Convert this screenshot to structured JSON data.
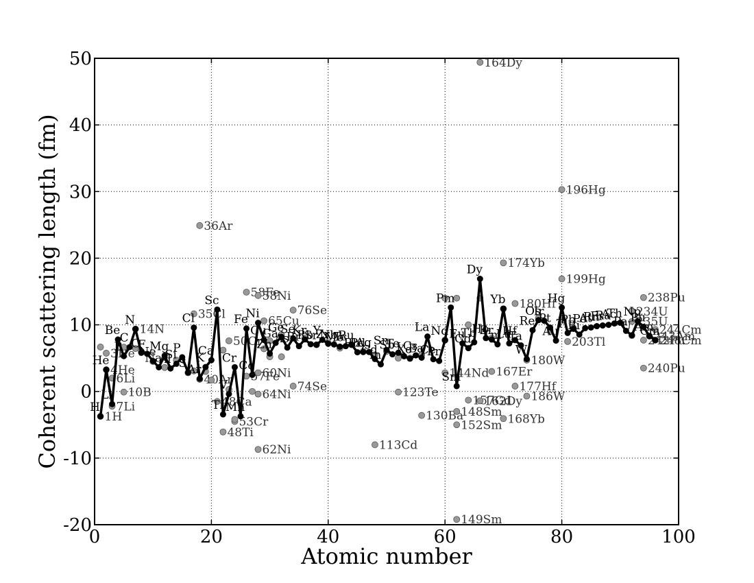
{
  "chart_data": {
    "type": "scatter",
    "title": "",
    "xlabel": "Atomic number",
    "ylabel": "Coherent scattering length (fm)",
    "xlim": [
      0,
      100
    ],
    "ylim": [
      -20,
      50
    ],
    "xticks": [
      0,
      20,
      40,
      60,
      80,
      100
    ],
    "yticks": [
      -20,
      -10,
      0,
      10,
      20,
      30,
      40,
      50
    ],
    "grid": true,
    "colors": {
      "element_line": "#000000",
      "isotope_marker": "#999999",
      "isotope_edge": "#555555"
    },
    "element_series": [
      {
        "z": 1,
        "y": -3.74,
        "label": "H"
      },
      {
        "z": 2,
        "y": 3.26,
        "label": "He"
      },
      {
        "z": 3,
        "y": -1.9,
        "label": "Li"
      },
      {
        "z": 4,
        "y": 7.79,
        "label": "Be"
      },
      {
        "z": 5,
        "y": 5.3,
        "label": "B"
      },
      {
        "z": 6,
        "y": 6.65,
        "label": "C"
      },
      {
        "z": 7,
        "y": 9.36,
        "label": "N"
      },
      {
        "z": 8,
        "y": 5.8,
        "label": "O"
      },
      {
        "z": 9,
        "y": 5.65,
        "label": "F"
      },
      {
        "z": 10,
        "y": 4.57,
        "label": "Ne"
      },
      {
        "z": 11,
        "y": 3.63,
        "label": "Na"
      },
      {
        "z": 12,
        "y": 5.38,
        "label": "Mg"
      },
      {
        "z": 13,
        "y": 3.45,
        "label": "Al"
      },
      {
        "z": 14,
        "y": 4.15,
        "label": "Si"
      },
      {
        "z": 15,
        "y": 5.13,
        "label": "P"
      },
      {
        "z": 16,
        "y": 2.85,
        "label": "S"
      },
      {
        "z": 17,
        "y": 9.58,
        "label": "Cl"
      },
      {
        "z": 18,
        "y": 1.91,
        "label": "Ar"
      },
      {
        "z": 19,
        "y": 3.67,
        "label": "K"
      },
      {
        "z": 20,
        "y": 4.7,
        "label": "Ca"
      },
      {
        "z": 21,
        "y": 12.29,
        "label": "Sc"
      },
      {
        "z": 22,
        "y": -3.44,
        "label": "Ti"
      },
      {
        "z": 23,
        "y": -0.38,
        "label": "V"
      },
      {
        "z": 24,
        "y": 3.64,
        "label": "Cr"
      },
      {
        "z": 25,
        "y": -3.73,
        "label": "Mn"
      },
      {
        "z": 26,
        "y": 9.45,
        "label": "Fe"
      },
      {
        "z": 27,
        "y": 2.49,
        "label": "Co"
      },
      {
        "z": 28,
        "y": 10.3,
        "label": "Ni"
      },
      {
        "z": 29,
        "y": 7.72,
        "label": "Cu"
      },
      {
        "z": 30,
        "y": 5.68,
        "label": "Zn"
      },
      {
        "z": 31,
        "y": 7.29,
        "label": "Ga"
      },
      {
        "z": 32,
        "y": 8.19,
        "label": "Ge"
      },
      {
        "z": 33,
        "y": 6.58,
        "label": "As"
      },
      {
        "z": 34,
        "y": 7.97,
        "label": "Se"
      },
      {
        "z": 35,
        "y": 6.8,
        "label": "Br"
      },
      {
        "z": 36,
        "y": 7.81,
        "label": "Kr"
      },
      {
        "z": 37,
        "y": 7.09,
        "label": "Rb"
      },
      {
        "z": 38,
        "y": 7.02,
        "label": "Sr"
      },
      {
        "z": 39,
        "y": 7.75,
        "label": "Y"
      },
      {
        "z": 40,
        "y": 7.16,
        "label": "Zr"
      },
      {
        "z": 41,
        "y": 7.05,
        "label": "Nb"
      },
      {
        "z": 42,
        "y": 6.72,
        "label": "Mo"
      },
      {
        "z": 43,
        "y": 6.8,
        "label": "Tc"
      },
      {
        "z": 44,
        "y": 7.03,
        "label": "Ru"
      },
      {
        "z": 45,
        "y": 5.88,
        "label": "Rh"
      },
      {
        "z": 46,
        "y": 5.91,
        "label": "Pd"
      },
      {
        "z": 47,
        "y": 5.92,
        "label": "Ag"
      },
      {
        "z": 48,
        "y": 4.87,
        "label": "Cd"
      },
      {
        "z": 49,
        "y": 4.07,
        "label": "In"
      },
      {
        "z": 50,
        "y": 6.23,
        "label": "Sn"
      },
      {
        "z": 51,
        "y": 5.57,
        "label": "Sb"
      },
      {
        "z": 52,
        "y": 5.8,
        "label": "Te"
      },
      {
        "z": 53,
        "y": 5.28,
        "label": "I"
      },
      {
        "z": 54,
        "y": 4.92,
        "label": "Xe"
      },
      {
        "z": 55,
        "y": 5.42,
        "label": "Cs"
      },
      {
        "z": 56,
        "y": 5.07,
        "label": "Ba"
      },
      {
        "z": 57,
        "y": 8.24,
        "label": "La"
      },
      {
        "z": 58,
        "y": 4.84,
        "label": "Ce"
      },
      {
        "z": 59,
        "y": 4.58,
        "label": "Pr"
      },
      {
        "z": 60,
        "y": 7.69,
        "label": "Nd"
      },
      {
        "z": 61,
        "y": 12.6,
        "label": "Pm"
      },
      {
        "z": 62,
        "y": 0.8,
        "label": "Sm"
      },
      {
        "z": 63,
        "y": 7.22,
        "label": "Eu"
      },
      {
        "z": 64,
        "y": 6.5,
        "label": "Gd"
      },
      {
        "z": 65,
        "y": 7.38,
        "label": "Tb"
      },
      {
        "z": 66,
        "y": 16.9,
        "label": "Dy"
      },
      {
        "z": 67,
        "y": 8.01,
        "label": "Ho"
      },
      {
        "z": 68,
        "y": 7.79,
        "label": "Er"
      },
      {
        "z": 69,
        "y": 7.07,
        "label": "Tm"
      },
      {
        "z": 70,
        "y": 12.43,
        "label": "Yb"
      },
      {
        "z": 71,
        "y": 7.21,
        "label": "Lu"
      },
      {
        "z": 72,
        "y": 7.7,
        "label": "Hf"
      },
      {
        "z": 73,
        "y": 6.91,
        "label": "Ta"
      },
      {
        "z": 74,
        "y": 4.86,
        "label": "W"
      },
      {
        "z": 75,
        "y": 9.2,
        "label": "Re"
      },
      {
        "z": 76,
        "y": 10.7,
        "label": "Os"
      },
      {
        "z": 77,
        "y": 10.6,
        "label": "Ir"
      },
      {
        "z": 78,
        "y": 9.6,
        "label": "Pt"
      },
      {
        "z": 79,
        "y": 7.63,
        "label": "Au"
      },
      {
        "z": 80,
        "y": 12.59,
        "label": "Hg"
      },
      {
        "z": 81,
        "y": 8.78,
        "label": "Tl"
      },
      {
        "z": 82,
        "y": 9.4,
        "label": "Pb"
      },
      {
        "z": 83,
        "y": 8.53,
        "label": "Bi"
      },
      {
        "z": 84,
        "y": 9.5,
        "label": "Po"
      },
      {
        "z": 85,
        "y": 9.6,
        "label": "At"
      },
      {
        "z": 86,
        "y": 9.8,
        "label": "Rn"
      },
      {
        "z": 87,
        "y": 9.9,
        "label": "Fr"
      },
      {
        "z": 88,
        "y": 10.0,
        "label": "Ra"
      },
      {
        "z": 89,
        "y": 10.2,
        "label": "Ac"
      },
      {
        "z": 90,
        "y": 10.31,
        "label": "Th"
      },
      {
        "z": 91,
        "y": 9.1,
        "label": "Pa"
      },
      {
        "z": 92,
        "y": 8.42,
        "label": "U"
      },
      {
        "z": 93,
        "y": 10.55,
        "label": "Np"
      },
      {
        "z": 94,
        "y": 9.7,
        "label": "Pu"
      },
      {
        "z": 95,
        "y": 8.3,
        "label": "Am"
      },
      {
        "z": 96,
        "y": 7.7,
        "label": "Cm"
      }
    ],
    "isotope_series": [
      {
        "z": 1,
        "y": -3.74,
        "label": "1H"
      },
      {
        "z": 1,
        "y": 6.67,
        "label": ""
      },
      {
        "z": 2,
        "y": 5.74,
        "label": "3He"
      },
      {
        "z": 2,
        "y": 3.26,
        "label": "4He"
      },
      {
        "z": 3,
        "y": 2.0,
        "label": "6Li"
      },
      {
        "z": 3,
        "y": -2.22,
        "label": "7Li"
      },
      {
        "z": 5,
        "y": -0.1,
        "label": "10B"
      },
      {
        "z": 5,
        "y": 6.65,
        "label": ""
      },
      {
        "z": 7,
        "y": 9.37,
        "label": "14N"
      },
      {
        "z": 7,
        "y": 6.44,
        "label": ""
      },
      {
        "z": 8,
        "y": 6.0,
        "label": ""
      },
      {
        "z": 10,
        "y": 4.5,
        "label": ""
      },
      {
        "z": 12,
        "y": 3.6,
        "label": ""
      },
      {
        "z": 14,
        "y": 4.7,
        "label": ""
      },
      {
        "z": 16,
        "y": 2.8,
        "label": ""
      },
      {
        "z": 17,
        "y": 11.65,
        "label": "35Cl"
      },
      {
        "z": 17,
        "y": 3.08,
        "label": ""
      },
      {
        "z": 18,
        "y": 24.9,
        "label": "36Ar"
      },
      {
        "z": 18,
        "y": 1.83,
        "label": "40Ar"
      },
      {
        "z": 19,
        "y": 3.0,
        "label": ""
      },
      {
        "z": 20,
        "y": 1.7,
        "label": ""
      },
      {
        "z": 21,
        "y": -1.5,
        "label": "48Ca"
      },
      {
        "z": 22,
        "y": 6.2,
        "label": ""
      },
      {
        "z": 22,
        "y": -6.08,
        "label": "48Ti"
      },
      {
        "z": 23,
        "y": 7.6,
        "label": "50Cr"
      },
      {
        "z": 23,
        "y": 0.3,
        "label": ""
      },
      {
        "z": 24,
        "y": -4.5,
        "label": "53Cr"
      },
      {
        "z": 24,
        "y": -4.2,
        "label": ""
      },
      {
        "z": 26,
        "y": 14.9,
        "label": "58Fe"
      },
      {
        "z": 26,
        "y": 2.3,
        "label": "57Fe"
      },
      {
        "z": 27,
        "y": 0.0,
        "label": ""
      },
      {
        "z": 28,
        "y": 14.4,
        "label": "58Ni"
      },
      {
        "z": 28,
        "y": -0.4,
        "label": "64Ni"
      },
      {
        "z": 28,
        "y": -8.7,
        "label": "62Ni"
      },
      {
        "z": 28,
        "y": 2.8,
        "label": "60Ni"
      },
      {
        "z": 29,
        "y": 10.6,
        "label": "65Cu"
      },
      {
        "z": 29,
        "y": 6.4,
        "label": ""
      },
      {
        "z": 30,
        "y": 5.2,
        "label": ""
      },
      {
        "z": 30,
        "y": 7.6,
        "label": ""
      },
      {
        "z": 32,
        "y": 8.5,
        "label": ""
      },
      {
        "z": 32,
        "y": 5.2,
        "label": ""
      },
      {
        "z": 34,
        "y": 12.2,
        "label": "76Se"
      },
      {
        "z": 34,
        "y": 0.8,
        "label": "74Se"
      },
      {
        "z": 36,
        "y": 8.0,
        "label": ""
      },
      {
        "z": 38,
        "y": 7.0,
        "label": ""
      },
      {
        "z": 40,
        "y": 7.3,
        "label": ""
      },
      {
        "z": 42,
        "y": 6.5,
        "label": ""
      },
      {
        "z": 44,
        "y": 7.0,
        "label": ""
      },
      {
        "z": 46,
        "y": 6.0,
        "label": ""
      },
      {
        "z": 48,
        "y": -8.0,
        "label": "113Cd"
      },
      {
        "z": 48,
        "y": 5.5,
        "label": ""
      },
      {
        "z": 50,
        "y": 6.0,
        "label": ""
      },
      {
        "z": 52,
        "y": -0.1,
        "label": "123Te"
      },
      {
        "z": 52,
        "y": 5.0,
        "label": ""
      },
      {
        "z": 54,
        "y": 5.0,
        "label": ""
      },
      {
        "z": 56,
        "y": -3.6,
        "label": "130Ba"
      },
      {
        "z": 56,
        "y": 5.5,
        "label": ""
      },
      {
        "z": 60,
        "y": 2.8,
        "label": "144Nd"
      },
      {
        "z": 60,
        "y": 14.0,
        "label": ""
      },
      {
        "z": 60,
        "y": 7.7,
        "label": ""
      },
      {
        "z": 62,
        "y": -19.2,
        "label": "149Sm"
      },
      {
        "z": 62,
        "y": -5.0,
        "label": "152Sm"
      },
      {
        "z": 62,
        "y": -3.0,
        "label": "148Sm"
      },
      {
        "z": 62,
        "y": 14.0,
        "label": ""
      },
      {
        "z": 64,
        "y": -1.3,
        "label": "157Gd"
      },
      {
        "z": 64,
        "y": 10.0,
        "label": ""
      },
      {
        "z": 66,
        "y": 49.4,
        "label": "164Dy"
      },
      {
        "z": 66,
        "y": -1.4,
        "label": "162Dy"
      },
      {
        "z": 66,
        "y": 14.0,
        "label": ""
      },
      {
        "z": 68,
        "y": 3.0,
        "label": "167Er"
      },
      {
        "z": 68,
        "y": 8.0,
        "label": ""
      },
      {
        "z": 70,
        "y": 19.3,
        "label": "174Yb"
      },
      {
        "z": 70,
        "y": -4.07,
        "label": "168Yb"
      },
      {
        "z": 70,
        "y": 12.4,
        "label": ""
      },
      {
        "z": 72,
        "y": 13.2,
        "label": "180Hf"
      },
      {
        "z": 72,
        "y": 0.8,
        "label": "177Hf"
      },
      {
        "z": 74,
        "y": 4.7,
        "label": "180W"
      },
      {
        "z": 74,
        "y": -0.7,
        "label": "186W"
      },
      {
        "z": 76,
        "y": 11.0,
        "label": ""
      },
      {
        "z": 78,
        "y": 9.0,
        "label": ""
      },
      {
        "z": 80,
        "y": 30.3,
        "label": "196Hg"
      },
      {
        "z": 80,
        "y": 16.9,
        "label": "199Hg"
      },
      {
        "z": 80,
        "y": 11.0,
        "label": ""
      },
      {
        "z": 81,
        "y": 7.5,
        "label": "203Tl"
      },
      {
        "z": 82,
        "y": 9.5,
        "label": ""
      },
      {
        "z": 92,
        "y": 8.4,
        "label": ""
      },
      {
        "z": 92,
        "y": 12.1,
        "label": ""
      },
      {
        "z": 92,
        "y": 10.5,
        "label": "235U"
      },
      {
        "z": 92,
        "y": 12.0,
        "label": "234U"
      },
      {
        "z": 94,
        "y": 14.1,
        "label": "238Pu"
      },
      {
        "z": 94,
        "y": 3.5,
        "label": "240Pu"
      },
      {
        "z": 94,
        "y": 7.7,
        "label": "242Pu"
      },
      {
        "z": 96,
        "y": 9.3,
        "label": "244Cm"
      },
      {
        "z": 96,
        "y": 7.7,
        "label": "248Cm"
      },
      {
        "z": 95,
        "y": 8.3,
        "label": "243Am"
      }
    ]
  }
}
